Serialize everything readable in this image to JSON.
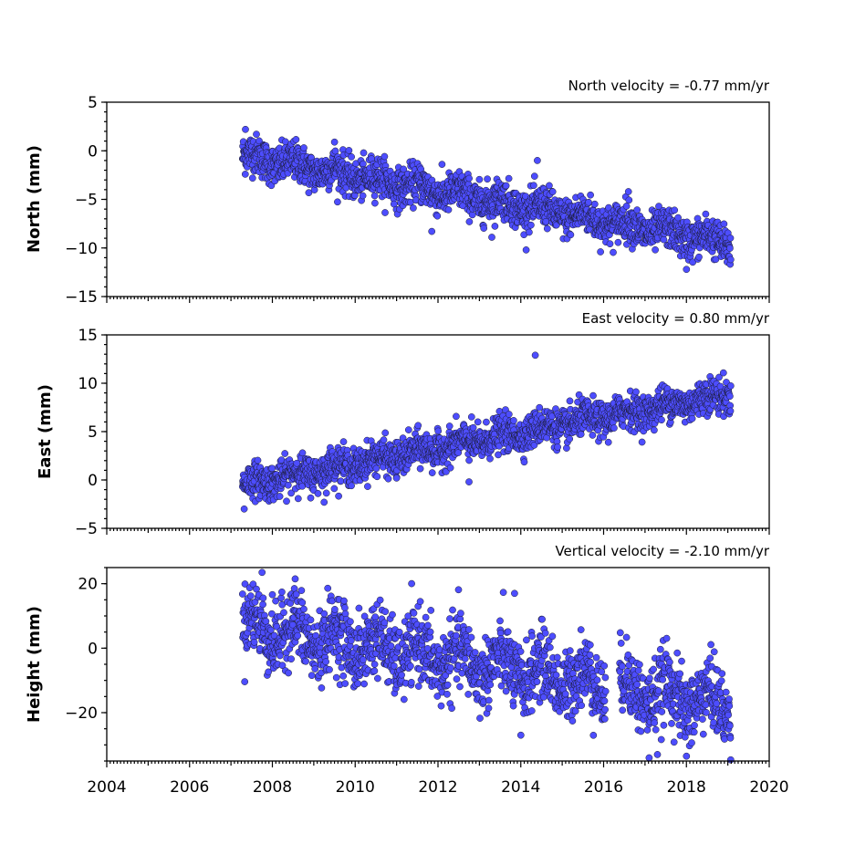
{
  "figure": {
    "xaxis": {
      "ticks": [
        "2004",
        "2006",
        "2008",
        "2010",
        "2012",
        "2014",
        "2016",
        "2018",
        "2020"
      ],
      "range": [
        2004,
        2020
      ]
    },
    "marker_color": "#4d4dff",
    "marker_edge_color": "#1a1a2e"
  },
  "chart_data": [
    {
      "type": "scatter",
      "ylabel": "North (mm)",
      "velocity_label": "North velocity = -0.77 mm/yr",
      "ylim": [
        -15,
        5
      ],
      "yticks": [
        "5",
        "0",
        "−10",
        "−15"
      ],
      "ytick_values": [
        5,
        0,
        -10,
        -15
      ],
      "extra_ytick": {
        "label": "−5",
        "value": -5
      },
      "series": [
        {
          "x_start": 2007.28,
          "x_end": 2019.07,
          "start_value": -0.5,
          "slope_mm_per_yr": -0.77,
          "noise_mm": 1.0,
          "seasonal_mm": 0.5,
          "gaps": [],
          "outliers": [
            {
              "x": 2007.35,
              "y": 2.2
            },
            {
              "x": 2009.5,
              "y": 0.9
            },
            {
              "x": 2011.85,
              "y": -8.3
            },
            {
              "x": 2013.3,
              "y": -8.9
            },
            {
              "x": 2014.4,
              "y": -1.0
            },
            {
              "x": 2016.6,
              "y": -4.2
            },
            {
              "x": 2018.0,
              "y": -12.2
            }
          ]
        }
      ]
    },
    {
      "type": "scatter",
      "ylabel": "East (mm)",
      "velocity_label": "East velocity = 0.80 mm/yr",
      "ylim": [
        -5,
        15
      ],
      "yticks": [
        "15",
        "10",
        "5",
        "0",
        "−5"
      ],
      "ytick_values": [
        15,
        10,
        5,
        0,
        -5
      ],
      "series": [
        {
          "x_start": 2007.28,
          "x_end": 2019.07,
          "start_value": -0.5,
          "slope_mm_per_yr": 0.8,
          "noise_mm": 0.9,
          "seasonal_mm": 0.4,
          "gaps": [],
          "outliers": [
            {
              "x": 2014.35,
              "y": 12.9
            },
            {
              "x": 2007.32,
              "y": -3.0
            },
            {
              "x": 2009.25,
              "y": -2.3
            },
            {
              "x": 2012.75,
              "y": -0.2
            },
            {
              "x": 2011.0,
              "y": 0.2
            }
          ]
        }
      ]
    },
    {
      "type": "scatter",
      "ylabel": "Height (mm)",
      "velocity_label": "Vertical velocity = -2.10 mm/yr",
      "ylim": [
        -35,
        25
      ],
      "yticks": [
        "20",
        "0",
        "−20"
      ],
      "ytick_values": [
        20,
        0,
        -20
      ],
      "series": [
        {
          "x_start": 2007.28,
          "x_end": 2019.07,
          "start_value": 7.0,
          "slope_mm_per_yr": -2.1,
          "noise_mm": 5.5,
          "seasonal_mm": 4.0,
          "gaps": [
            [
              2016.05,
              2016.38
            ]
          ],
          "outliers": [
            {
              "x": 2007.75,
              "y": 23.5
            },
            {
              "x": 2008.55,
              "y": 21.5
            },
            {
              "x": 2013.85,
              "y": 17.0
            },
            {
              "x": 2017.1,
              "y": -34.0
            },
            {
              "x": 2017.3,
              "y": -33.0
            },
            {
              "x": 2018.0,
              "y": -33.5
            },
            {
              "x": 2014.0,
              "y": -27.0
            }
          ]
        }
      ]
    }
  ]
}
